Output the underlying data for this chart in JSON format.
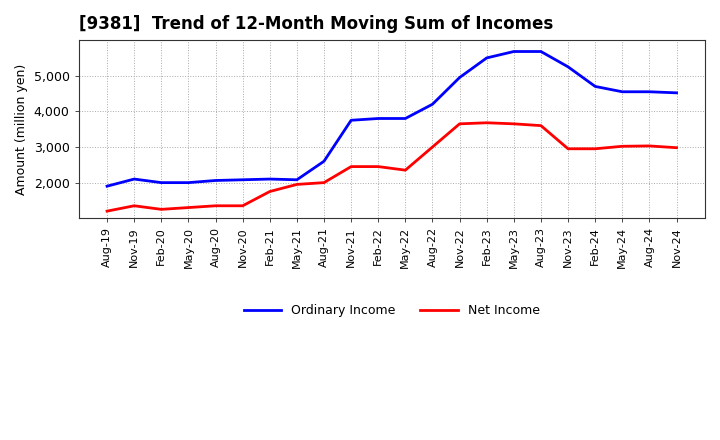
{
  "title": "[9381]  Trend of 12-Month Moving Sum of Incomes",
  "ylabel": "Amount (million yen)",
  "legend_labels": [
    "Ordinary Income",
    "Net Income"
  ],
  "line_colors": [
    "blue",
    "red"
  ],
  "x_labels": [
    "Aug-19",
    "Nov-19",
    "Feb-20",
    "May-20",
    "Aug-20",
    "Nov-20",
    "Feb-21",
    "May-21",
    "Aug-21",
    "Nov-21",
    "Feb-22",
    "May-22",
    "Aug-22",
    "Nov-22",
    "Feb-23",
    "May-23",
    "Aug-23",
    "Nov-23",
    "Feb-24",
    "May-24",
    "Aug-24",
    "Nov-24"
  ],
  "ordinary_income": [
    1900,
    2100,
    2000,
    2000,
    2060,
    2080,
    2100,
    2080,
    2600,
    3750,
    3800,
    3800,
    4200,
    4950,
    5500,
    5680,
    5680,
    5250,
    4700,
    4550,
    4550,
    4520
  ],
  "net_income": [
    1200,
    1350,
    1250,
    1300,
    1350,
    1350,
    1750,
    1950,
    2000,
    2450,
    2450,
    2350,
    3000,
    3650,
    3680,
    3650,
    3600,
    2950,
    2950,
    3020,
    3030,
    2980
  ],
  "ylim": [
    1000,
    6000
  ],
  "yticks": [
    2000,
    3000,
    4000,
    5000
  ],
  "background_color": "#ffffff",
  "grid_color": "#aaaaaa",
  "title_fontsize": 12,
  "tick_fontsize": 8,
  "ylabel_fontsize": 9
}
